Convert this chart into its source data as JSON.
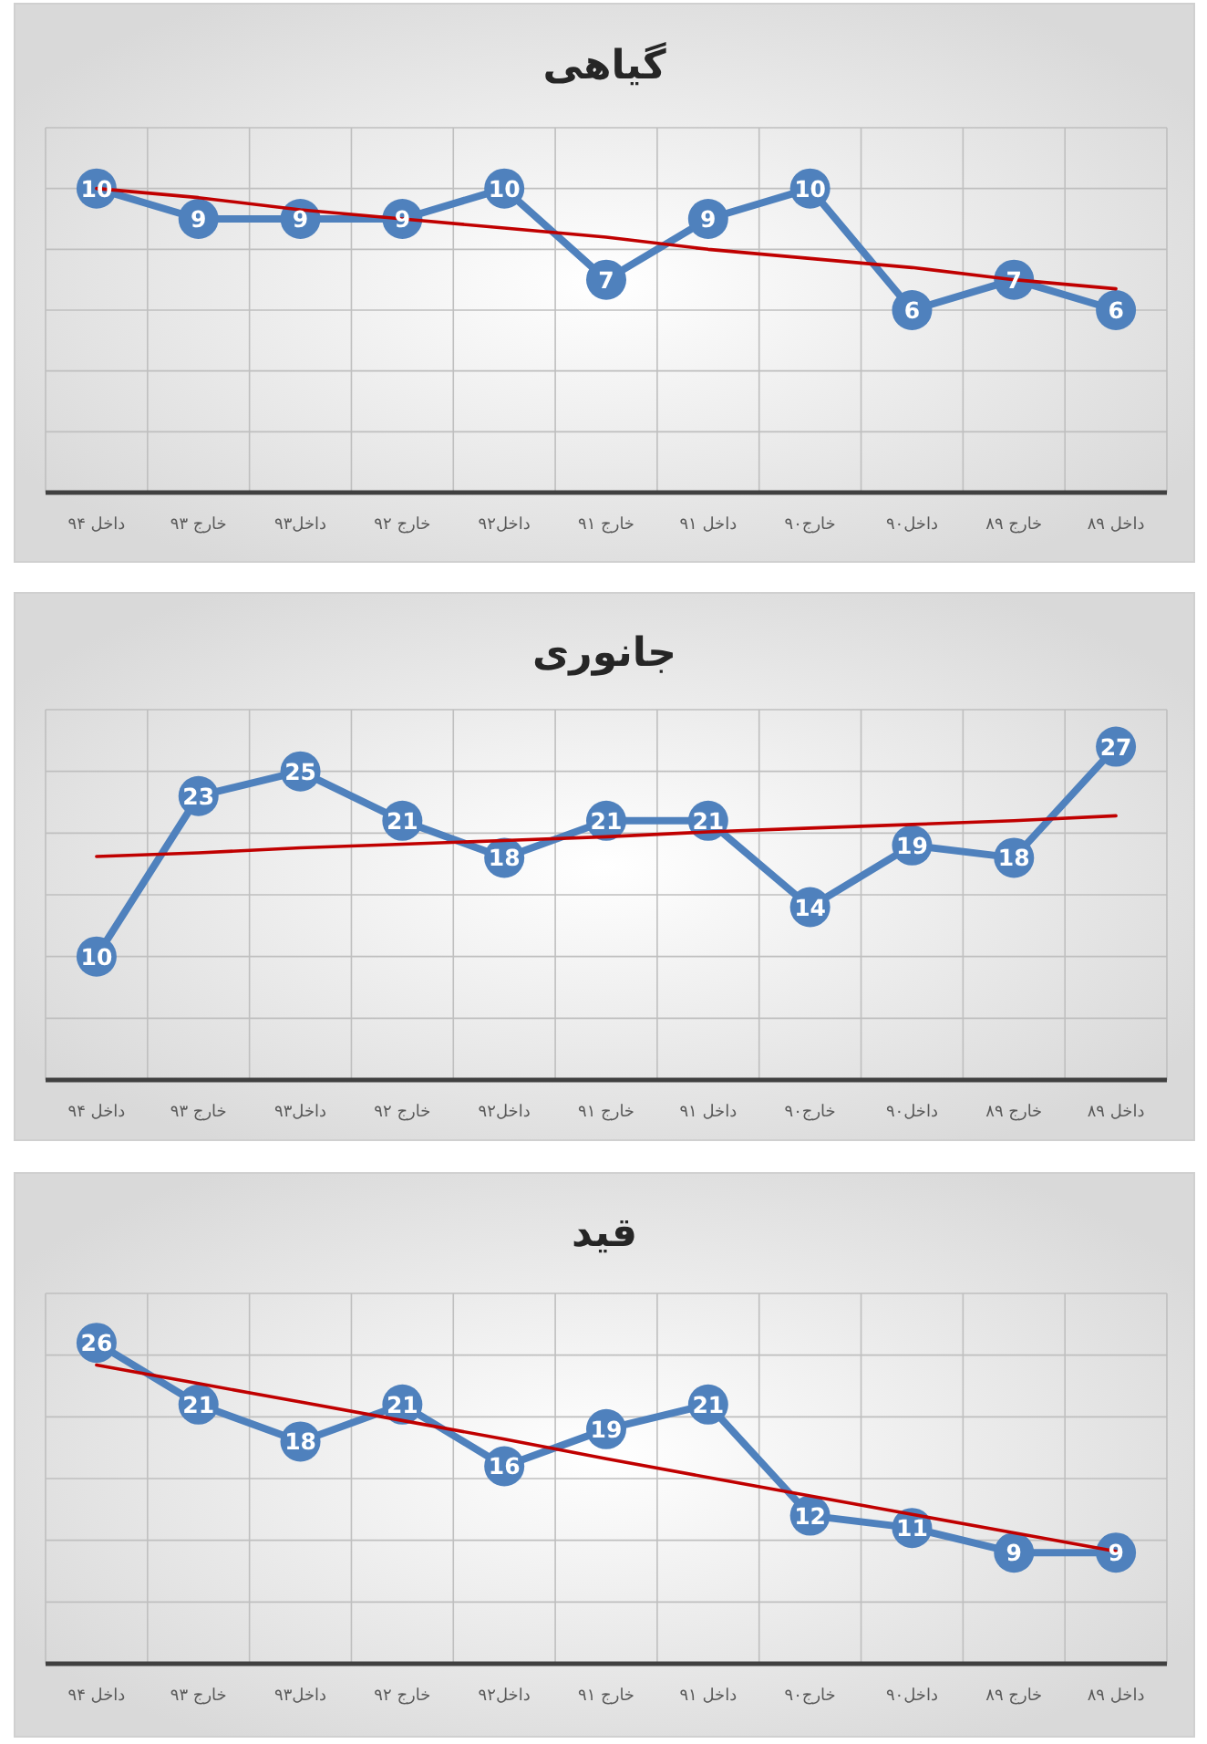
{
  "chart_data": [
    {
      "type": "line",
      "title": "گیاهی",
      "categories": [
        "داخل ۹۴",
        "خارج ۹۳",
        "داخل۹۳",
        "خارج ۹۲",
        "داخل۹۲",
        "خارج ۹۱",
        "داخل ۹۱",
        "خارج۹۰",
        "داخل۹۰",
        "خارج ۸۹",
        "داخل ۸۹"
      ],
      "ylim": [
        0,
        12
      ],
      "yticks": [
        {
          "value": 0,
          "label": null
        },
        {
          "value": 2,
          "label": null
        },
        {
          "value": 4,
          "label": null
        },
        {
          "value": 6,
          "label": null
        },
        {
          "value": 8,
          "label": null
        },
        {
          "value": 10,
          "label": null
        },
        {
          "value": 12,
          "label": null
        }
      ],
      "tick_labels": "x",
      "grid": true,
      "marker": "circle",
      "series": [
        {
          "color": "#4f81bd",
          "values": [
            10,
            9,
            9,
            9,
            10,
            7,
            9,
            10,
            6,
            7,
            6
          ],
          "value_labels": [
            "10",
            "9",
            "9",
            "9",
            "10",
            "7",
            "9",
            "10",
            "6",
            "7",
            "6"
          ]
        },
        {
          "type": "line",
          "color": "#c00000",
          "marker": "none",
          "values": [
            10.0,
            9.7,
            9.3,
            9.0,
            8.7,
            8.4,
            8.0,
            7.7,
            7.4,
            7.0,
            6.7
          ]
        }
      ]
    },
    {
      "type": "line",
      "title": "جانوری",
      "categories": [
        "داخل ۹۴",
        "خارج ۹۳",
        "داخل۹۳",
        "خارج ۹۲",
        "داخل۹۲",
        "خارج ۹۱",
        "داخل ۹۱",
        "خارج۹۰",
        "داخل۹۰",
        "خارج ۸۹",
        "داخل ۸۹"
      ],
      "ylim": [
        0,
        30
      ],
      "yticks": [
        {
          "value": 0,
          "label": null
        },
        {
          "value": 5,
          "label": null
        },
        {
          "value": 10,
          "label": null
        },
        {
          "value": 15,
          "label": null
        },
        {
          "value": 20,
          "label": null
        },
        {
          "value": 25,
          "label": null
        },
        {
          "value": 30,
          "label": null
        }
      ],
      "tick_labels": "x",
      "grid": true,
      "marker": "circle",
      "series": [
        {
          "color": "#4f81bd",
          "values": [
            10,
            23,
            25,
            21,
            18,
            21,
            21,
            14,
            19,
            18,
            27
          ],
          "value_labels": [
            "10",
            "23",
            "25",
            "21",
            "18",
            "21",
            "21",
            "14",
            "19",
            "18",
            "27"
          ]
        },
        {
          "type": "line",
          "color": "#c00000",
          "marker": "none",
          "values": [
            18.1,
            18.4,
            18.8,
            19.1,
            19.4,
            19.7,
            20.1,
            20.4,
            20.7,
            21.0,
            21.4
          ]
        }
      ]
    },
    {
      "type": "line",
      "title": "قید",
      "categories": [
        "داخل ۹۴",
        "خارج ۹۳",
        "داخل۹۳",
        "خارج ۹۲",
        "داخل۹۲",
        "خارج ۹۱",
        "داخل ۹۱",
        "خارج۹۰",
        "داخل۹۰",
        "خارج ۸۹",
        "داخل ۸۹"
      ],
      "ylim": [
        0,
        30
      ],
      "yticks": [
        {
          "value": 0,
          "label": null
        },
        {
          "value": 5,
          "label": null
        },
        {
          "value": 10,
          "label": null
        },
        {
          "value": 15,
          "label": null
        },
        {
          "value": 20,
          "label": null
        },
        {
          "value": 25,
          "label": null
        },
        {
          "value": 30,
          "label": null
        }
      ],
      "tick_labels": "x",
      "grid": true,
      "marker": "circle",
      "series": [
        {
          "color": "#4f81bd",
          "values": [
            26,
            21,
            18,
            21,
            16,
            19,
            21,
            12,
            11,
            9,
            9
          ],
          "value_labels": [
            "26",
            "21",
            "18",
            "21",
            "16",
            "19",
            "21",
            "12",
            "11",
            "9",
            "9"
          ]
        },
        {
          "type": "line",
          "color": "#c00000",
          "marker": "none",
          "values": [
            24.2,
            22.7,
            21.2,
            19.7,
            18.2,
            16.6,
            15.1,
            13.6,
            12.1,
            10.6,
            9.1
          ]
        }
      ]
    }
  ]
}
